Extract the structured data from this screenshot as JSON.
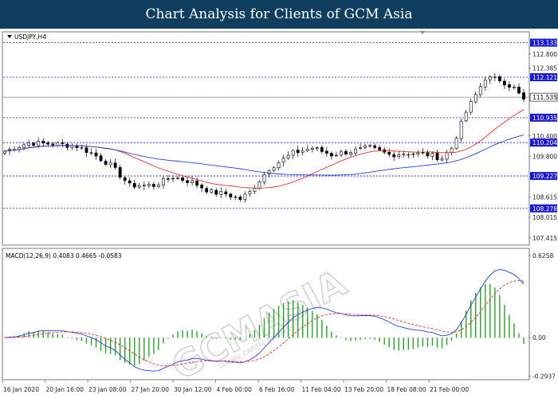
{
  "banner": {
    "title": "Chart Analysis for Clients of GCM Asia"
  },
  "watermark": {
    "text": "GCMASIA",
    "subtext": "GLOBAL CAPITAL MARKETS"
  },
  "colors": {
    "banner": "#0f3e5e",
    "candle_up": "#ffffff",
    "candle_down": "#000000",
    "ma_fast": "#e03030",
    "ma_slow": "#2a3fd6",
    "level_line": "#1a1acc",
    "level_label_bg": "#1a1acc",
    "macd_hist": "#2e9c2e",
    "macd_signal": "#e03030",
    "macd_line": "#2a3fd6"
  },
  "chart_data": [
    {
      "type": "candlestick",
      "title": "USDJPY,H4",
      "ylim": [
        107.2,
        113.45
      ],
      "yticks": [
        "112.800",
        "112.385",
        "110.400",
        "109.800",
        "108.615",
        "108.015",
        "107.415"
      ],
      "current_price": "111.535",
      "levels": [
        "113.133",
        "112.121",
        "110.935",
        "110.204",
        "109.227",
        "108.278"
      ],
      "x_labels": [
        "16 Jan 2020",
        "20 Jan 16:00",
        "23 Jan 08:00",
        "27 Jan 20:00",
        "30 Jan 12:00",
        "4 Feb 00:00",
        "6 Feb 16:00",
        "11 Feb 04:00",
        "13 Feb 20:00",
        "18 Feb 08:00",
        "21 Feb 00:00"
      ],
      "path_anchors": [
        [
          0,
          109.95
        ],
        [
          5,
          110.2
        ],
        [
          12,
          110.15
        ],
        [
          15,
          110.1
        ],
        [
          18,
          109.9
        ],
        [
          22,
          109.55
        ],
        [
          26,
          108.95
        ],
        [
          31,
          108.95
        ],
        [
          35,
          109.2
        ],
        [
          39,
          109.05
        ],
        [
          43,
          108.75
        ],
        [
          46,
          108.7
        ],
        [
          49,
          108.55
        ],
        [
          51,
          108.75
        ],
        [
          55,
          109.45
        ],
        [
          60,
          109.9
        ],
        [
          64,
          110.05
        ],
        [
          68,
          109.85
        ],
        [
          72,
          109.95
        ],
        [
          76,
          110.05
        ],
        [
          80,
          109.85
        ],
        [
          84,
          109.9
        ],
        [
          88,
          109.85
        ],
        [
          91,
          109.75
        ],
        [
          93,
          110.05
        ],
        [
          96,
          111.1
        ],
        [
          98,
          111.6
        ],
        [
          100,
          112.1
        ],
        [
          103,
          112.05
        ],
        [
          106,
          111.8
        ],
        [
          108,
          111.45
        ]
      ],
      "ma_fast_period": 20,
      "ma_slow_period": 50
    },
    {
      "type": "macd",
      "title": "MACD(12,26,9) 0.4083 0.4665 -0.0583",
      "params": [
        12,
        26,
        9
      ],
      "values": {
        "macd": 0.4083,
        "signal": 0.4665,
        "histogram": -0.0583
      },
      "ylim": [
        -0.32,
        0.68
      ],
      "yticks": [
        "0.6258",
        "0.00",
        "-0.2937"
      ]
    }
  ]
}
